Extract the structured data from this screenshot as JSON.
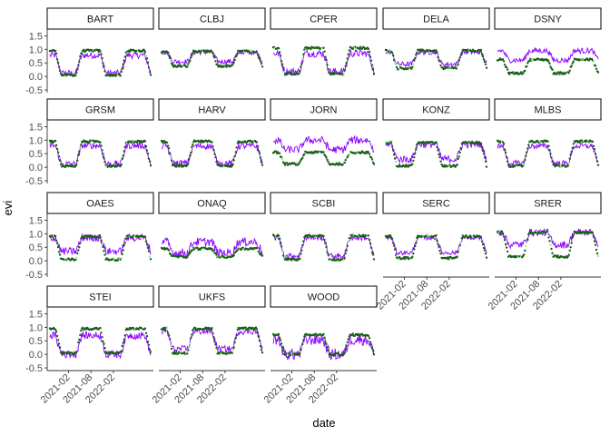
{
  "chart_data": {
    "type": "faceted-line-scatter",
    "xlabel": "date",
    "ylabel": "evi",
    "xlim": [
      "2020-09",
      "2022-12"
    ],
    "ylim": [
      -0.6,
      1.75
    ],
    "yticks": [
      -0.5,
      0.0,
      0.5,
      1.0,
      1.5
    ],
    "ytick_labels": [
      "-0.5",
      "0.0",
      "0.5",
      "1.0",
      "1.5"
    ],
    "xticks": [
      "2021-02",
      "2021-08",
      "2022-02"
    ],
    "colors": {
      "forecast": "#8B00FF",
      "observed": "#1a5e1a",
      "observed_light": "#90ee90"
    },
    "panels": [
      {
        "site": "BART",
        "min": 0.05,
        "max": 0.95,
        "start": 0.1,
        "fc_min": 0.12,
        "fc_max": 0.78,
        "noise": 0.12
      },
      {
        "site": "CLBJ",
        "min": 0.38,
        "max": 0.92,
        "start": 0.03,
        "fc_min": 0.55,
        "fc_max": 0.9,
        "noise": 0.1
      },
      {
        "site": "CPER",
        "min": 0.1,
        "max": 1.05,
        "start": 0.15,
        "fc_min": 0.18,
        "fc_max": 0.85,
        "noise": 0.14
      },
      {
        "site": "DELA",
        "min": 0.3,
        "max": 0.95,
        "start": 0.08,
        "fc_min": 0.45,
        "fc_max": 0.9,
        "noise": 0.1
      },
      {
        "site": "DSNY",
        "min": 0.12,
        "max": 0.62,
        "start": 0.2,
        "fc_min": 0.6,
        "fc_max": 0.95,
        "noise": 0.1
      },
      {
        "site": "GRSM",
        "min": 0.05,
        "max": 0.95,
        "start": 0.1,
        "fc_min": 0.12,
        "fc_max": 0.8,
        "noise": 0.12
      },
      {
        "site": "HARV",
        "min": 0.05,
        "max": 0.95,
        "start": 0.1,
        "fc_min": 0.15,
        "fc_max": 0.78,
        "noise": 0.12
      },
      {
        "site": "JORN",
        "min": 0.12,
        "max": 0.55,
        "start": 0.0,
        "fc_min": 0.65,
        "fc_max": 1.0,
        "noise": 0.14
      },
      {
        "site": "KONZ",
        "min": 0.05,
        "max": 0.9,
        "start": 0.1,
        "fc_min": 0.3,
        "fc_max": 0.85,
        "noise": 0.14
      },
      {
        "site": "MLBS",
        "min": 0.05,
        "max": 0.95,
        "start": 0.12,
        "fc_min": 0.15,
        "fc_max": 0.78,
        "noise": 0.1
      },
      {
        "site": "OAES",
        "min": 0.05,
        "max": 0.9,
        "start": 0.05,
        "fc_min": 0.35,
        "fc_max": 0.85,
        "noise": 0.14
      },
      {
        "site": "ONAQ",
        "min": 0.15,
        "max": 0.45,
        "start": 0.08,
        "fc_min": 0.3,
        "fc_max": 0.7,
        "noise": 0.16
      },
      {
        "site": "SCBI",
        "min": 0.05,
        "max": 0.92,
        "start": 0.1,
        "fc_min": 0.18,
        "fc_max": 0.85,
        "noise": 0.1
      },
      {
        "site": "SERC",
        "min": 0.1,
        "max": 0.9,
        "start": 0.1,
        "fc_min": 0.3,
        "fc_max": 0.85,
        "noise": 0.08
      },
      {
        "site": "SRER",
        "min": 0.15,
        "max": 1.05,
        "start": 0.02,
        "fc_min": 0.6,
        "fc_max": 1.05,
        "noise": 0.14
      },
      {
        "site": "STEI",
        "min": 0.05,
        "max": 0.95,
        "start": 0.12,
        "fc_min": 0.0,
        "fc_max": 0.7,
        "noise": 0.14
      },
      {
        "site": "UKFS",
        "min": 0.05,
        "max": 0.95,
        "start": 0.1,
        "fc_min": 0.2,
        "fc_max": 0.85,
        "noise": 0.12
      },
      {
        "site": "WOOD",
        "min": 0.0,
        "max": 0.72,
        "start": 0.12,
        "fc_min": 0.0,
        "fc_max": 0.55,
        "noise": 0.22
      }
    ]
  }
}
